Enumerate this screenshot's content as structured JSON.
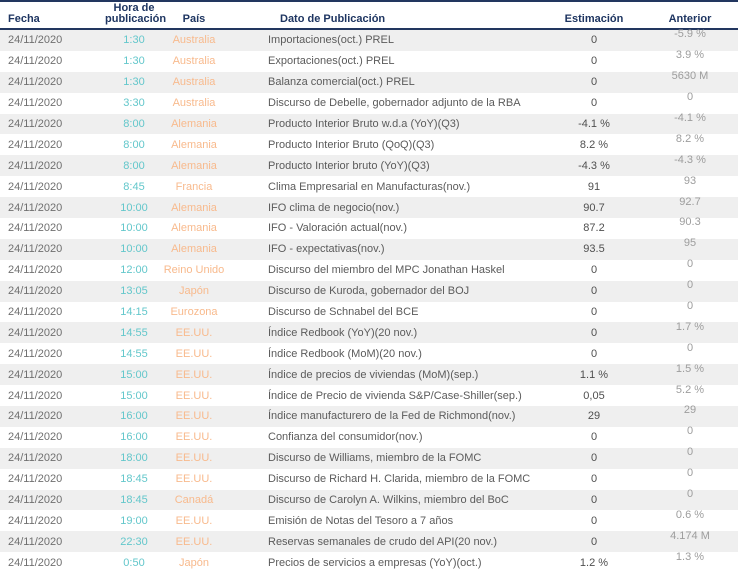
{
  "table": {
    "columns": {
      "fecha": "Fecha",
      "hora": "Hora de publicación",
      "pais": "País",
      "dato": "Dato de Publicación",
      "estimacion": "Estimación",
      "anterior": "Anterior"
    },
    "rows": [
      {
        "fecha": "24/11/2020",
        "hora": "1:30",
        "pais": "Australia",
        "dato": "Importaciones(oct.) PREL",
        "estimacion": "0",
        "anterior": "-5.9 %"
      },
      {
        "fecha": "24/11/2020",
        "hora": "1:30",
        "pais": "Australia",
        "dato": "Exportaciones(oct.) PREL",
        "estimacion": "0",
        "anterior": "3.9 %"
      },
      {
        "fecha": "24/11/2020",
        "hora": "1:30",
        "pais": "Australia",
        "dato": "Balanza comercial(oct.) PREL",
        "estimacion": "0",
        "anterior": "5630 M"
      },
      {
        "fecha": "24/11/2020",
        "hora": "3:30",
        "pais": "Australia",
        "dato": "Discurso de Debelle, gobernador adjunto de la RBA",
        "estimacion": "0",
        "anterior": "0"
      },
      {
        "fecha": "24/11/2020",
        "hora": "8:00",
        "pais": "Alemania",
        "dato": "Producto Interior Bruto w.d.a (YoY)(Q3)",
        "estimacion": "-4.1 %",
        "anterior": "-4.1 %"
      },
      {
        "fecha": "24/11/2020",
        "hora": "8:00",
        "pais": "Alemania",
        "dato": "Producto Interior Bruto (QoQ)(Q3)",
        "estimacion": "8.2 %",
        "anterior": "8.2 %"
      },
      {
        "fecha": "24/11/2020",
        "hora": "8:00",
        "pais": "Alemania",
        "dato": "Producto Interior bruto (YoY)(Q3)",
        "estimacion": "-4.3 %",
        "anterior": "-4.3 %"
      },
      {
        "fecha": "24/11/2020",
        "hora": "8:45",
        "pais": "Francia",
        "dato": "Clima Empresarial en Manufacturas(nov.)",
        "estimacion": "91",
        "anterior": "93"
      },
      {
        "fecha": "24/11/2020",
        "hora": "10:00",
        "pais": "Alemania",
        "dato": "IFO clima de negocio(nov.)",
        "estimacion": "90.7",
        "anterior": "92.7"
      },
      {
        "fecha": "24/11/2020",
        "hora": "10:00",
        "pais": "Alemania",
        "dato": "IFO - Valoración actual(nov.)",
        "estimacion": "87.2",
        "anterior": "90.3"
      },
      {
        "fecha": "24/11/2020",
        "hora": "10:00",
        "pais": "Alemania",
        "dato": "IFO - expectativas(nov.)",
        "estimacion": "93.5",
        "anterior": "95"
      },
      {
        "fecha": "24/11/2020",
        "hora": "12:00",
        "pais": "Reino Unido",
        "dato": "Discurso del miembro del MPC Jonathan Haskel",
        "estimacion": "0",
        "anterior": "0"
      },
      {
        "fecha": "24/11/2020",
        "hora": "13:05",
        "pais": "Japón",
        "dato": "Discurso de Kuroda, gobernador del BOJ",
        "estimacion": "0",
        "anterior": "0"
      },
      {
        "fecha": "24/11/2020",
        "hora": "14:15",
        "pais": "Eurozona",
        "dato": "Discurso de Schnabel del BCE",
        "estimacion": "0",
        "anterior": "0"
      },
      {
        "fecha": "24/11/2020",
        "hora": "14:55",
        "pais": "EE.UU.",
        "dato": "Índice Redbook (YoY)(20 nov.)",
        "estimacion": "0",
        "anterior": "1.7 %"
      },
      {
        "fecha": "24/11/2020",
        "hora": "14:55",
        "pais": "EE.UU.",
        "dato": "Índice Redbook (MoM)(20 nov.)",
        "estimacion": "0",
        "anterior": "0"
      },
      {
        "fecha": "24/11/2020",
        "hora": "15:00",
        "pais": "EE.UU.",
        "dato": "Índice de precios de viviendas (MoM)(sep.)",
        "estimacion": "1.1 %",
        "anterior": "1.5 %"
      },
      {
        "fecha": "24/11/2020",
        "hora": "15:00",
        "pais": "EE.UU.",
        "dato": "Índice de Precio de vivienda S&P/Case-Shiller(sep.)",
        "estimacion": "0,05",
        "anterior": "5.2 %"
      },
      {
        "fecha": "24/11/2020",
        "hora": "16:00",
        "pais": "EE.UU.",
        "dato": "Índice manufacturero de la Fed de Richmond(nov.)",
        "estimacion": "29",
        "anterior": "29"
      },
      {
        "fecha": "24/11/2020",
        "hora": "16:00",
        "pais": "EE.UU.",
        "dato": "Confianza del consumidor(nov.)",
        "estimacion": "0",
        "anterior": "0"
      },
      {
        "fecha": "24/11/2020",
        "hora": "18:00",
        "pais": "EE.UU.",
        "dato": "Discurso de Williams, miembro de la FOMC",
        "estimacion": "0",
        "anterior": "0"
      },
      {
        "fecha": "24/11/2020",
        "hora": "18:45",
        "pais": "EE.UU.",
        "dato": "Discurso de Richard H. Clarida, miembro de la FOMC",
        "estimacion": "0",
        "anterior": "0"
      },
      {
        "fecha": "24/11/2020",
        "hora": "18:45",
        "pais": "Canadá",
        "dato": "Discurso de Carolyn A. Wilkins, miembro del BoC",
        "estimacion": "0",
        "anterior": "0"
      },
      {
        "fecha": "24/11/2020",
        "hora": "19:00",
        "pais": "EE.UU.",
        "dato": "Emisión de Notas del Tesoro a 7 años",
        "estimacion": "0",
        "anterior": "0.6 %"
      },
      {
        "fecha": "24/11/2020",
        "hora": "22:30",
        "pais": "EE.UU.",
        "dato": "Reservas semanales de crudo del API(20 nov.)",
        "estimacion": "0",
        "anterior": "4.174 M"
      },
      {
        "fecha": "24/11/2020",
        "hora": "0:50",
        "pais": "Japón",
        "dato": "Precios de servicios a empresas (YoY)(oct.)",
        "estimacion": "1.2 %",
        "anterior": "1.3 %"
      }
    ]
  },
  "colors": {
    "header_navy": "#1e3561",
    "border_navy": "#22365f",
    "row_shade": "#efefef",
    "time_teal": "#63c7cb",
    "country_orange": "#f8ba8d",
    "anterior_gray": "#9d9d9d"
  }
}
